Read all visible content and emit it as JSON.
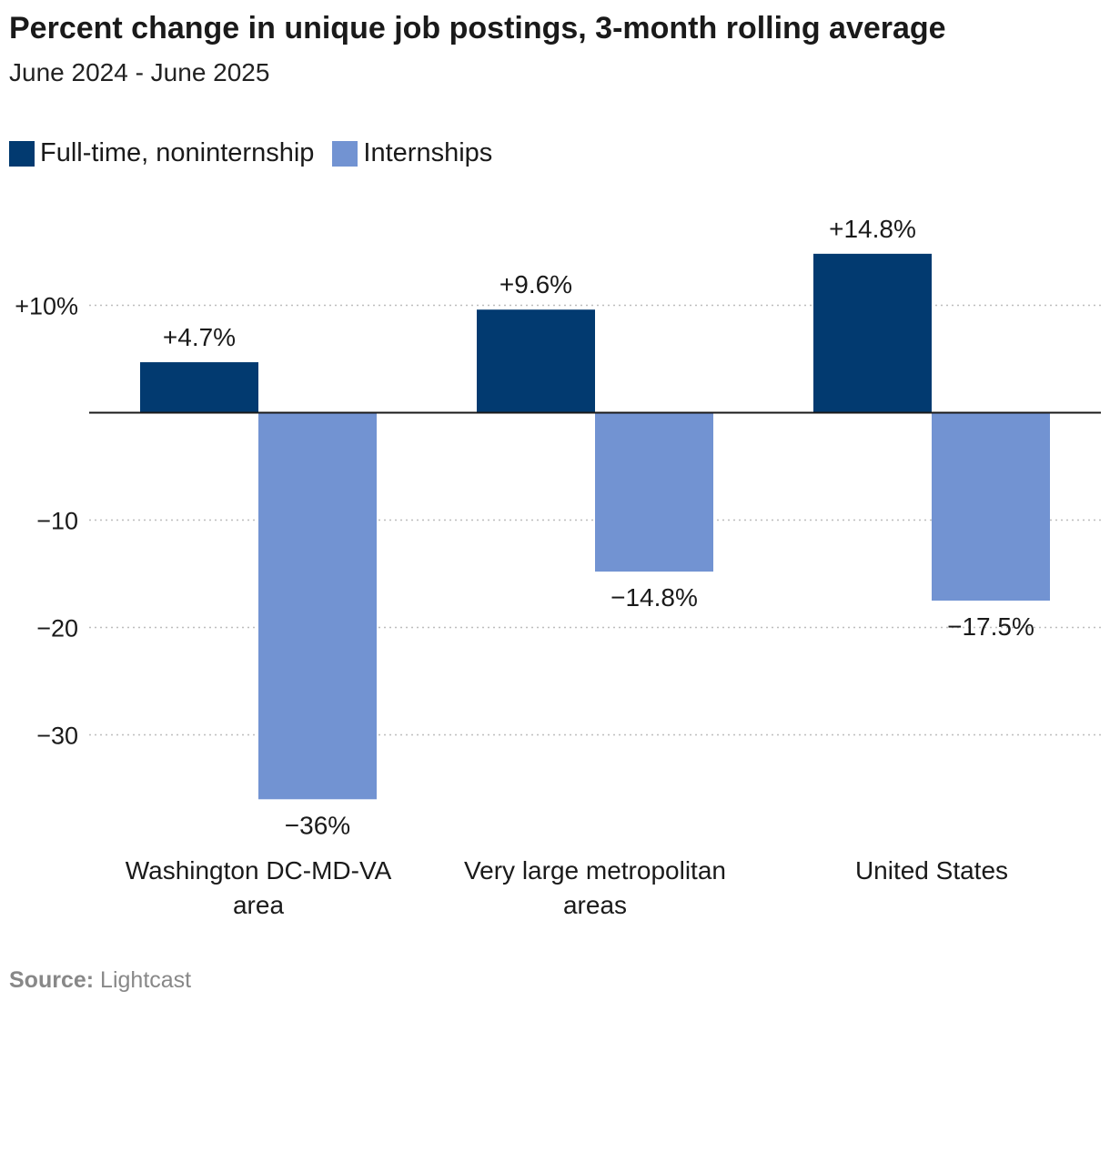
{
  "header": {
    "title": "Percent change in unique job postings, 3-month rolling average",
    "subtitle": "June 2024 - June 2025"
  },
  "legend": {
    "items": [
      {
        "label": "Full-time, noninternship",
        "color": "#023a70"
      },
      {
        "label": "Internships",
        "color": "#7293d2"
      }
    ]
  },
  "footer": {
    "source_label": "Source:",
    "source_value": "Lightcast"
  },
  "chart_data": {
    "type": "bar",
    "title": "Percent change in unique job postings, 3-month rolling average",
    "subtitle": "June 2024 - June 2025",
    "categories": [
      [
        "Washington DC-MD-VA",
        "area"
      ],
      [
        "Very large metropolitan",
        "areas"
      ],
      [
        "United States"
      ]
    ],
    "series": [
      {
        "name": "Full-time, noninternship",
        "color": "#023a70",
        "values": [
          4.7,
          9.6,
          14.8
        ],
        "labels": [
          "+4.7%",
          "+9.6%",
          "+14.8%"
        ]
      },
      {
        "name": "Internships",
        "color": "#7293d2",
        "values": [
          -36,
          -14.8,
          -17.5
        ],
        "labels": [
          "−36%",
          "−14.8%",
          "−17.5%"
        ]
      }
    ],
    "y_ticks": [
      {
        "value": 10,
        "label": "+10%"
      },
      {
        "value": -10,
        "label": "−10"
      },
      {
        "value": -20,
        "label": "−20"
      },
      {
        "value": -30,
        "label": "−30"
      }
    ],
    "ylim": [
      -36,
      14.8
    ],
    "xlabel": "",
    "ylabel": "",
    "grid": true,
    "legend_position": "top-left"
  }
}
